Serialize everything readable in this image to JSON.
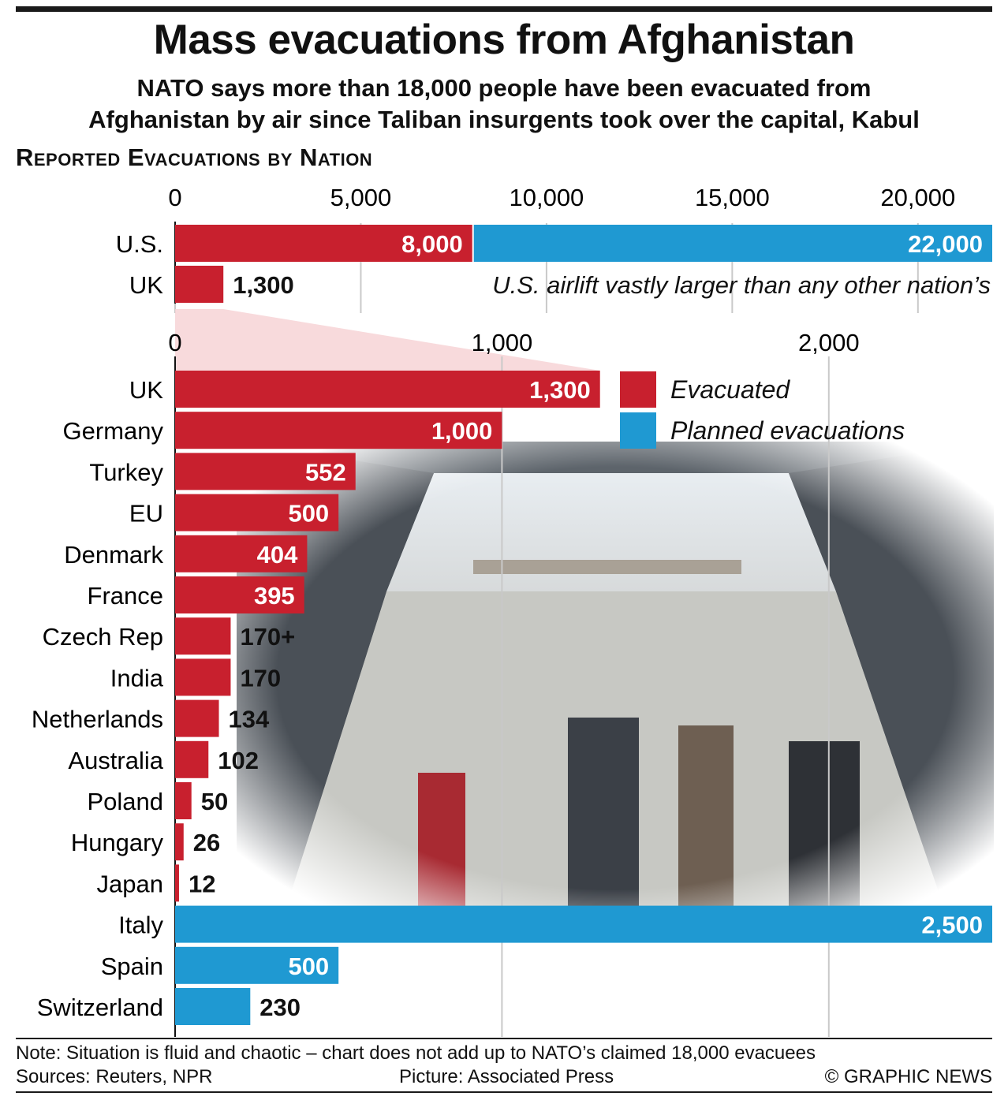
{
  "header": {
    "title": "Mass evacuations from Afghanistan",
    "subtitle_line1": "NATO says more than 18,000 people have been evacuated from",
    "subtitle_line2": "Afghanistan by air since Taliban insurgents took over the capital, Kabul",
    "section_heading": "Reported Evacuations by Nation"
  },
  "colors": {
    "evacuated": "#c8202e",
    "planned": "#1f99d2",
    "gridline": "#c9c9c9",
    "axis": "#111111",
    "zoom_band": "#f7d3d6"
  },
  "legend": {
    "evacuated_label": "Evacuated",
    "planned_label": "Planned evacuations"
  },
  "chart_data": [
    {
      "type": "bar",
      "orientation": "horizontal",
      "stacked": true,
      "title": "",
      "xlim": [
        0,
        22000
      ],
      "xticks": [
        0,
        5000,
        10000,
        15000,
        20000
      ],
      "xtick_labels": [
        "0",
        "5,000",
        "10,000",
        "15,000",
        "20,000"
      ],
      "categories": [
        "U.S.",
        "UK"
      ],
      "series": [
        {
          "name": "Evacuated",
          "values": [
            8000,
            1300
          ],
          "labels": [
            "8,000",
            "1,300"
          ]
        },
        {
          "name": "Planned evacuations",
          "values": [
            14000,
            0
          ],
          "labels": [
            "22,000",
            ""
          ]
        }
      ],
      "annotation": "U.S. airlift vastly larger than any other nation’s"
    },
    {
      "type": "bar",
      "orientation": "horizontal",
      "title": "",
      "xlim": [
        0,
        2500
      ],
      "xticks": [
        0,
        1000,
        2000
      ],
      "xtick_labels": [
        "0",
        "1,000",
        "2,000"
      ],
      "categories": [
        "UK",
        "Germany",
        "Turkey",
        "EU",
        "Denmark",
        "France",
        "Czech Rep",
        "India",
        "Netherlands",
        "Australia",
        "Poland",
        "Hungary",
        "Japan",
        "Italy",
        "Spain",
        "Switzerland"
      ],
      "values": [
        1300,
        1000,
        552,
        500,
        404,
        395,
        170,
        170,
        134,
        102,
        50,
        26,
        12,
        2500,
        500,
        230
      ],
      "labels": [
        "1,300",
        "1,000",
        "552",
        "500",
        "404",
        "395",
        "170+",
        "170",
        "134",
        "102",
        "50",
        "26",
        "12",
        "2,500",
        "500",
        "230"
      ],
      "kind": [
        "evacuated",
        "evacuated",
        "evacuated",
        "evacuated",
        "evacuated",
        "evacuated",
        "evacuated",
        "evacuated",
        "evacuated",
        "evacuated",
        "evacuated",
        "evacuated",
        "evacuated",
        "planned",
        "planned",
        "planned"
      ]
    }
  ],
  "footer": {
    "note": "Note: Situation is fluid and chaotic – chart does not add up to NATO’s claimed 18,000 evacuees",
    "sources": "Sources: Reuters, NPR",
    "picture": "Picture: Associated Press",
    "copyright": "© GRAPHIC NEWS"
  }
}
